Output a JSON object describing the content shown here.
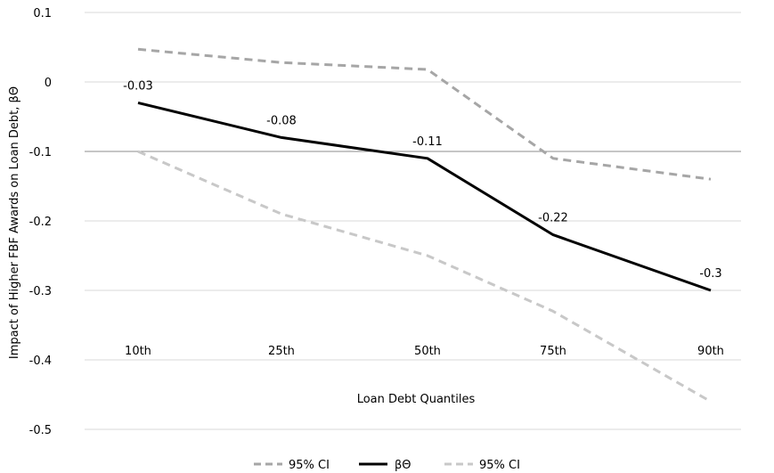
{
  "chart_data": {
    "type": "line",
    "title": "",
    "xlabel": "Loan Debt Quantiles",
    "ylabel": "Impact of Higher FBF Awards on Loan Debt, βΘ",
    "categories": [
      "10th",
      "25th",
      "50th",
      "75th",
      "90th"
    ],
    "ylim": [
      -0.5,
      0.1
    ],
    "yticks": [
      "0.1",
      "0",
      "-0.1",
      "-0.2",
      "-0.3",
      "-0.4",
      "-0.5"
    ],
    "ytick_values": [
      0.1,
      0,
      -0.1,
      -0.2,
      -0.3,
      -0.4,
      -0.5
    ],
    "grid": true,
    "legend_position": "bottom",
    "series": [
      {
        "name": "95% CI",
        "values": [
          0.047,
          0.028,
          0.018,
          -0.11,
          -0.14
        ],
        "color": "#a6a6a6",
        "style": "dashed"
      },
      {
        "name": "βΘ",
        "values": [
          -0.03,
          -0.08,
          -0.11,
          -0.22,
          -0.3
        ],
        "color": "#000000",
        "style": "solid",
        "labels": [
          "-0.03",
          "-0.08",
          "-0.11",
          "-0.22",
          "-0.3"
        ]
      },
      {
        "name": "95% CI",
        "values": [
          -0.1,
          -0.19,
          -0.25,
          -0.33,
          -0.46
        ],
        "color": "#c8c8c8",
        "style": "dashed"
      }
    ]
  }
}
